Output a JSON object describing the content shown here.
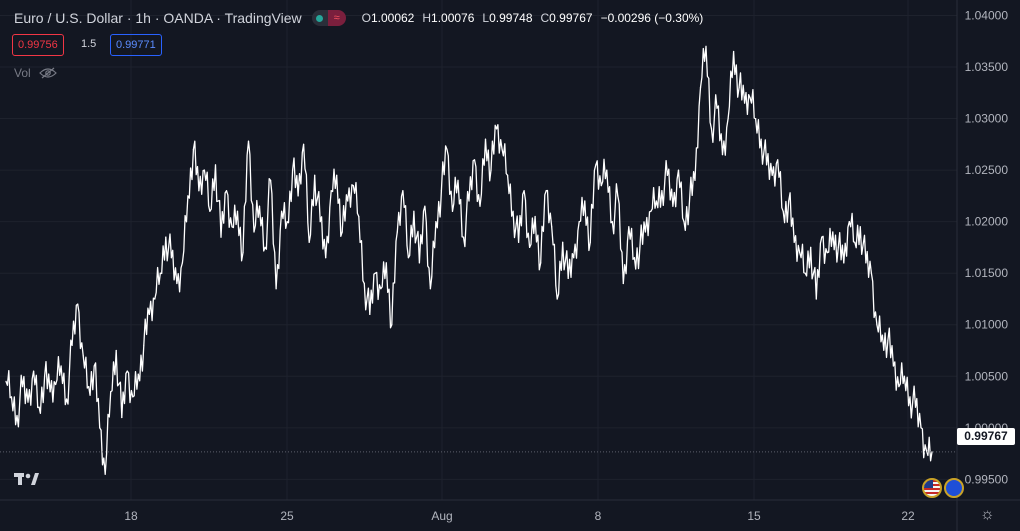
{
  "header": {
    "title": "Euro / U.S. Dollar · 1h · OANDA · TradingView",
    "ohlc": {
      "o_label": "O",
      "o_value": "1.00062",
      "h_label": "H",
      "h_value": "1.00076",
      "l_label": "L",
      "l_value": "0.99748",
      "c_label": "C",
      "c_value": "0.99767",
      "change": "−0.00296 (−0.30%)"
    },
    "toggle_icons": [
      "live-dot-icon",
      "wave-icon"
    ]
  },
  "trade": {
    "sell_price": "0.99756",
    "spread": "1.5",
    "buy_price": "0.99771"
  },
  "volume_label": "Vol",
  "last_price_label": "0.99767",
  "colors": {
    "background": "#131722",
    "grid": "#1e222d",
    "line": "#ffffff",
    "sell": "#f23645",
    "buy": "#2962ff"
  },
  "chart_data": {
    "type": "line",
    "series": [
      {
        "values": [
          1.0045,
          1.003,
          1.0012,
          1.004,
          1.0025,
          1.0055,
          1.002,
          1.005,
          1.0035,
          1.0042,
          1.006,
          1.0028,
          1.008,
          1.012,
          1.007,
          1.004,
          1.006,
          1.0,
          0.9955,
          1.0035,
          1.0075,
          1.001,
          1.0055,
          1.003,
          1.0052,
          1.008,
          1.011,
          1.0125,
          1.015,
          1.0185,
          1.0165,
          1.014,
          1.016,
          1.0225,
          1.027,
          1.023,
          1.025,
          1.021,
          1.0255,
          1.0185,
          1.023,
          1.0195,
          1.021,
          1.017,
          1.0278,
          1.019,
          1.0215,
          1.0175,
          1.024,
          1.0135,
          1.021,
          1.02,
          1.025,
          1.0225,
          1.0275,
          1.018,
          1.0245,
          1.02,
          1.0165,
          1.023,
          1.0245,
          1.019,
          1.022,
          1.0235,
          1.0205,
          1.014,
          1.011,
          1.015,
          1.0135,
          1.016,
          1.01,
          1.019,
          1.023,
          1.0165,
          1.021,
          1.016,
          1.0215,
          1.0135,
          1.02,
          1.023,
          1.027,
          1.021,
          1.024,
          1.0185,
          1.022,
          1.026,
          1.0215,
          1.028,
          1.025,
          1.029,
          1.027,
          1.0245,
          1.021,
          1.018,
          1.023,
          1.0175,
          1.0205,
          1.016,
          1.023,
          1.0195,
          1.0125,
          1.018,
          1.0145,
          1.0165,
          1.02,
          1.022,
          1.018,
          1.0255,
          1.0235,
          1.025,
          1.02,
          1.0225,
          1.014,
          1.0195,
          1.0165,
          1.0175,
          1.019,
          1.021,
          1.022,
          1.023,
          1.0245,
          1.0215,
          1.025,
          1.02,
          1.022,
          1.024,
          1.033,
          1.037,
          1.029,
          1.031,
          1.0265,
          1.03,
          1.0365,
          1.033,
          1.0315,
          1.032,
          1.03,
          1.028,
          1.0255,
          1.0245,
          1.026,
          1.021,
          1.022,
          1.018,
          1.017,
          1.015,
          1.0175,
          1.0125,
          1.0185,
          1.017,
          1.019,
          1.0175,
          1.016,
          1.02,
          1.018,
          1.0195,
          1.016,
          1.015,
          1.01,
          1.009,
          1.0085,
          1.006,
          1.004,
          1.005,
          1.003,
          1.002,
          1.0,
          0.9978,
          0.99767
        ]
      }
    ],
    "x_tick_labels": [
      "18",
      "25",
      "Aug",
      "8",
      "15",
      "22"
    ],
    "y_tick_labels": [
      "1.04000",
      "1.03500",
      "1.03000",
      "1.02500",
      "1.02000",
      "1.01500",
      "1.01000",
      "1.00500",
      "1.00000",
      "0.99500"
    ],
    "ylim": [
      0.993,
      1.0415
    ],
    "last_value": 0.99767,
    "grid": true
  }
}
